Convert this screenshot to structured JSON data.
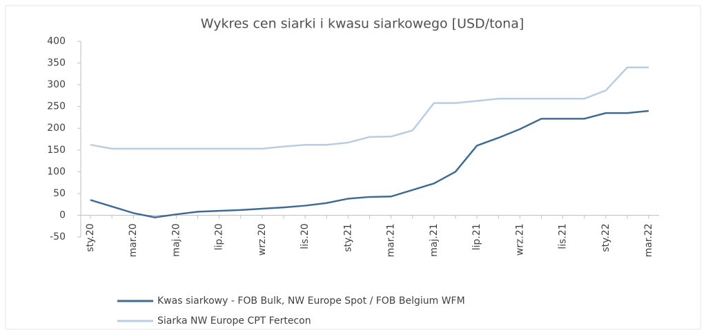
{
  "chart_data": {
    "type": "line",
    "title": "Wykres cen siarki i kwasu siarkowego [USD/tona]",
    "categories": [
      "sty.20",
      null,
      "mar.20",
      null,
      "maj.20",
      null,
      "lip.20",
      null,
      "wrz.20",
      null,
      "lis.20",
      null,
      "sty.21",
      null,
      "mar.21",
      null,
      "maj.21",
      null,
      "lip.21",
      null,
      "wrz.21",
      null,
      "lis.21",
      null,
      "sty.22",
      null,
      "mar.22"
    ],
    "series": [
      {
        "name": "Kwas siarkowy - FOB Bulk, NW Europe Spot  / FOB Belgium WFM",
        "color": "#3e6a94",
        "values": [
          35,
          20,
          5,
          -5,
          2,
          8,
          10,
          12,
          15,
          18,
          22,
          28,
          38,
          42,
          43,
          58,
          73,
          100,
          160,
          178,
          198,
          222,
          222,
          222,
          235,
          235,
          240
        ]
      },
      {
        "name": "Siarka NW Europe CPT Fertecon",
        "color": "#b8cde4",
        "values": [
          162,
          153,
          153,
          153,
          153,
          153,
          153,
          153,
          153,
          158,
          162,
          162,
          167,
          180,
          181,
          195,
          258,
          258,
          263,
          268,
          268,
          268,
          268,
          268,
          287,
          340,
          340
        ]
      }
    ],
    "ylim": [
      -50,
      400
    ],
    "yticks": [
      -50,
      0,
      50,
      100,
      150,
      200,
      250,
      300,
      350,
      400
    ]
  }
}
